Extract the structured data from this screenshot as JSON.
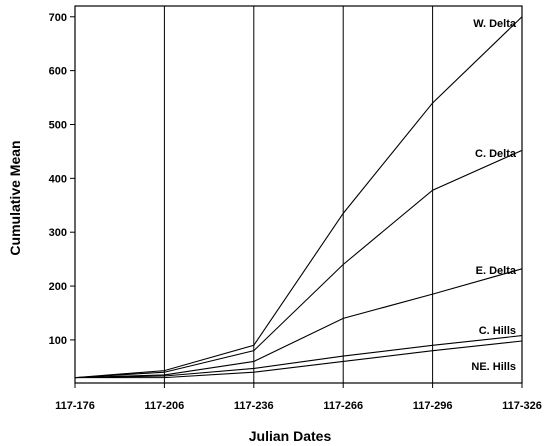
{
  "chart_data": {
    "type": "line",
    "title": "",
    "xlabel": "Julian Dates",
    "ylabel": "Cumulative Mean",
    "categories": [
      "117-176",
      "117-206",
      "117-236",
      "117-266",
      "117-296",
      "117-326"
    ],
    "ylim": [
      20,
      720
    ],
    "yticks": [
      100,
      200,
      300,
      400,
      500,
      600,
      700
    ],
    "grid": "vertical",
    "legend": "inline-right",
    "series": [
      {
        "name": "W. Delta",
        "values": [
          30,
          43,
          90,
          335,
          540,
          700
        ],
        "color": "#000000"
      },
      {
        "name": "C. Delta",
        "values": [
          30,
          40,
          80,
          240,
          378,
          452
        ],
        "color": "#000000"
      },
      {
        "name": "E. Delta",
        "values": [
          30,
          35,
          60,
          140,
          185,
          232
        ],
        "color": "#000000"
      },
      {
        "name": "C. Hills",
        "values": [
          30,
          33,
          47,
          70,
          90,
          108
        ],
        "color": "#000000"
      },
      {
        "name": "NE. Hills",
        "values": [
          30,
          30,
          40,
          60,
          80,
          98
        ],
        "color": "#000000"
      }
    ]
  }
}
